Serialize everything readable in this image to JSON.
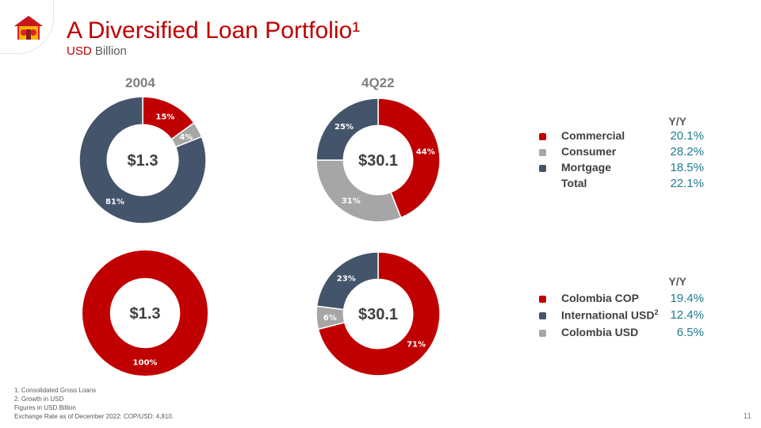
{
  "header": {
    "title": "A Diversified Loan Portfolio¹",
    "subtitle_accent": "USD",
    "subtitle_rest": " Billion"
  },
  "columns": {
    "left": "2004",
    "right": "4Q22"
  },
  "colors": {
    "red": "#c00000",
    "grey": "#a6a6a6",
    "navy": "#44546a"
  },
  "chart_data": [
    {
      "type": "pie",
      "title": "2004",
      "center_label": "$1.3",
      "series": [
        {
          "name": "Commercial",
          "value": 15,
          "label": "15%",
          "color": "#c00000"
        },
        {
          "name": "Consumer",
          "value": 4,
          "label": "4%",
          "color": "#a6a6a6"
        },
        {
          "name": "Mortgage",
          "value": 81,
          "label": "81%",
          "color": "#44546a"
        }
      ]
    },
    {
      "type": "pie",
      "title": "4Q22",
      "center_label": "$30.1",
      "series": [
        {
          "name": "Commercial",
          "value": 44,
          "label": "44%",
          "color": "#c00000"
        },
        {
          "name": "Consumer",
          "value": 31,
          "label": "31%",
          "color": "#a6a6a6"
        },
        {
          "name": "Mortgage",
          "value": 25,
          "label": "25%",
          "color": "#44546a"
        }
      ]
    },
    {
      "type": "pie",
      "title": "2004",
      "center_label": "$1.3",
      "series": [
        {
          "name": "International USD",
          "value": 0,
          "label": "0%",
          "color": "#44546a"
        },
        {
          "name": "Colombia COP",
          "value": 100,
          "label": "100%",
          "color": "#c00000"
        }
      ]
    },
    {
      "type": "pie",
      "title": "4Q22",
      "center_label": "$30.1",
      "series": [
        {
          "name": "Colombia COP",
          "value": 71,
          "label": "71%",
          "color": "#c00000"
        },
        {
          "name": "Colombia USD",
          "value": 6,
          "label": "6%",
          "color": "#a6a6a6"
        },
        {
          "name": "International USD",
          "value": 23,
          "label": "23%",
          "color": "#44546a"
        }
      ]
    }
  ],
  "legend_top": {
    "header": "Y/Y",
    "items": [
      {
        "label": "Commercial",
        "value": "20.1%",
        "color": "#c00000"
      },
      {
        "label": "Consumer",
        "value": "28.2%",
        "color": "#a6a6a6"
      },
      {
        "label": "Mortgage",
        "value": "18.5%",
        "color": "#44546a"
      },
      {
        "label": "Total",
        "value": "22.1%"
      }
    ]
  },
  "legend_bottom": {
    "header": "Y/Y",
    "items": [
      {
        "label": "Colombia COP",
        "value": "19.4%",
        "color": "#c00000"
      },
      {
        "label": "International USD",
        "sup": "2",
        "value": "12.4%",
        "color": "#44546a"
      },
      {
        "label": "Colombia USD",
        "value": "6.5%",
        "color": "#a6a6a6"
      }
    ]
  },
  "footnotes": [
    "1. Consolidated Gross Loans",
    "2. Growth in USD",
    "Figures in USD Billion",
    "Exchange Rate as of December 2022: COP/USD: 4,810."
  ],
  "page_number": "11"
}
